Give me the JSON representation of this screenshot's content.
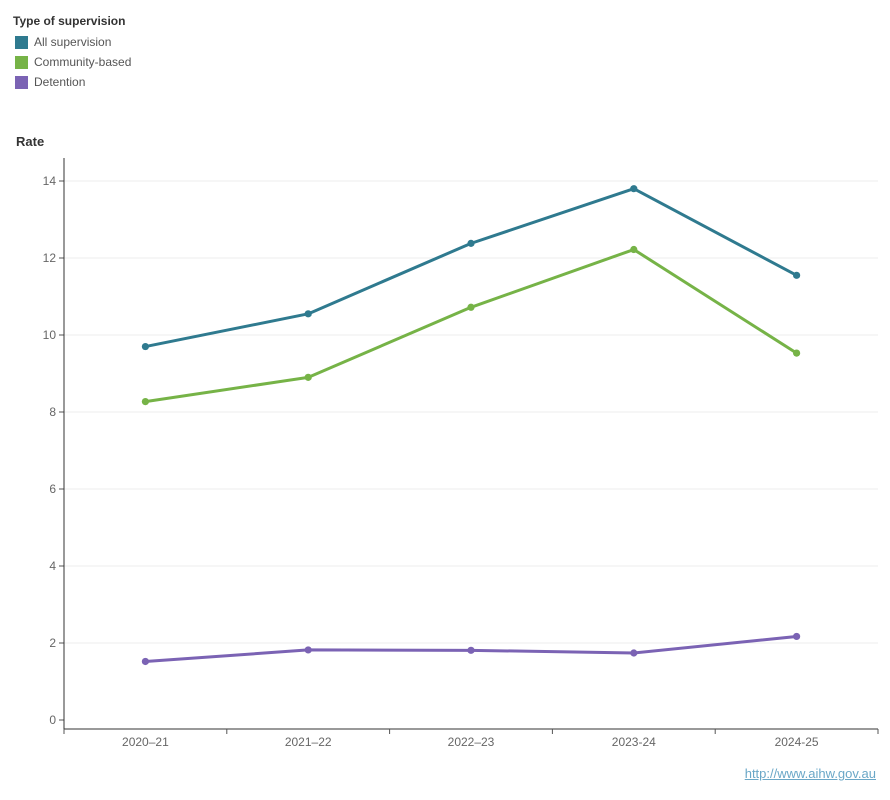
{
  "legend": {
    "title": "Type of supervision",
    "items": [
      {
        "label": "All supervision",
        "color": "#2f7a8f"
      },
      {
        "label": "Community-based",
        "color": "#76b347"
      },
      {
        "label": "Detention",
        "color": "#7b63b4"
      }
    ]
  },
  "axis": {
    "y_title": "Rate"
  },
  "source": {
    "link_text": "http://www.aihw.gov.au"
  },
  "chart_data": {
    "type": "line",
    "categories": [
      "2020–21",
      "2021–22",
      "2022–23",
      "2023-24",
      "2024-25"
    ],
    "ylabel": "Rate",
    "ylim": [
      0,
      14
    ],
    "yticks": [
      0,
      2,
      4,
      6,
      8,
      10,
      12,
      14
    ],
    "grid": true,
    "legend_position": "top-left",
    "series": [
      {
        "name": "All supervision",
        "color": "#2f7a8f",
        "values": [
          9.7,
          10.55,
          12.38,
          13.8,
          11.55
        ]
      },
      {
        "name": "Community-based",
        "color": "#76b347",
        "values": [
          8.27,
          8.9,
          10.72,
          12.22,
          9.53
        ]
      },
      {
        "name": "Detention",
        "color": "#7b63b4",
        "values": [
          1.52,
          1.82,
          1.81,
          1.74,
          2.17
        ]
      }
    ]
  }
}
